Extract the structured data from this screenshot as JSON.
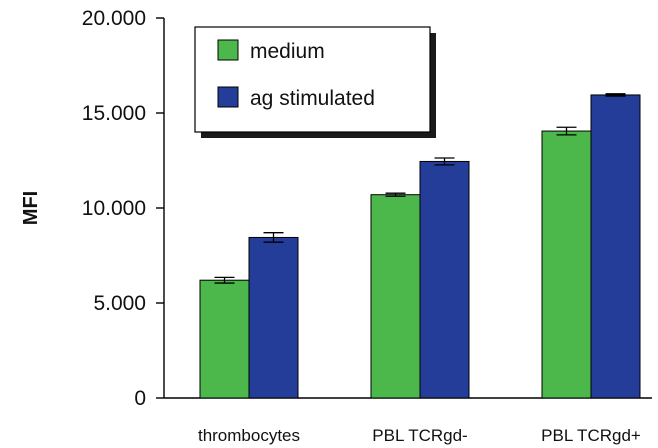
{
  "chart_data": {
    "type": "bar",
    "title": "",
    "xlabel": "",
    "ylabel": "MFI",
    "ylim": [
      0,
      20000
    ],
    "yticks": [
      0,
      5000,
      10000,
      15000,
      20000
    ],
    "ytick_labels": [
      "0",
      "5.000",
      "10.000",
      "15.000",
      "20.000"
    ],
    "categories": [
      "thrombocytes",
      "PBL TCRgd-",
      "PBL TCRgd+"
    ],
    "series": [
      {
        "name": "medium",
        "color": "#4cb84c",
        "values": [
          6200,
          10700,
          14050
        ],
        "errors": [
          150,
          80,
          200
        ]
      },
      {
        "name": "ag stimulated",
        "color": "#233d99",
        "values": [
          8450,
          12450,
          15950
        ],
        "errors": [
          250,
          180,
          60
        ]
      }
    ],
    "legend": {
      "position": "top-left",
      "entries": [
        "medium",
        "ag stimulated"
      ]
    },
    "grid": false,
    "error_bars": true
  }
}
